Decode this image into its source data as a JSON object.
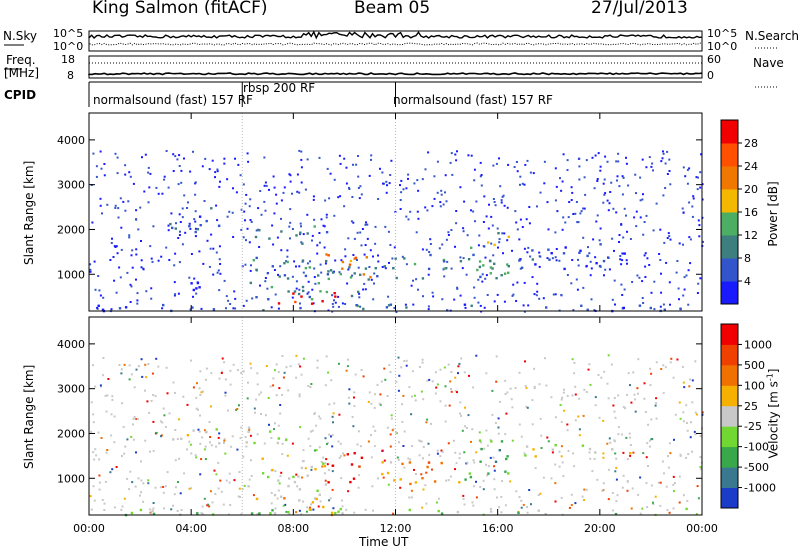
{
  "header": {
    "station": "King Salmon (fitACF)",
    "beam": "Beam 05",
    "date": "27/Jul/2013"
  },
  "side_labels": {
    "nsky": "N.Sky",
    "nsearch": "N.Search",
    "freq": "Freq.",
    "freq_unit": "[MHz]",
    "nave": "Nave",
    "cpid": "CPID"
  },
  "chart_data": [
    {
      "type": "line",
      "name": "noise",
      "ylabels_left": [
        "10^5",
        "10^0"
      ],
      "ylabels_right": [
        "10^5",
        "10^0"
      ],
      "series": [
        {
          "name": "N.Sky"
        },
        {
          "name": "N.Search"
        }
      ]
    },
    {
      "type": "line",
      "name": "freq-nave",
      "ylim_left": [
        8,
        18
      ],
      "ylim_right": [
        0,
        60
      ],
      "ylabels_left": [
        "18",
        "8"
      ],
      "ylabels_right": [
        "60",
        "0"
      ],
      "series": [
        {
          "name": "Freq."
        },
        {
          "name": "Nave"
        }
      ]
    },
    {
      "type": "table",
      "name": "cpid",
      "segments": [
        {
          "label": "normalsound (fast) 157 RF",
          "start_h": 0,
          "end_h": 6
        },
        {
          "label": "rbsp 200 RF",
          "start_h": 6,
          "end_h": 12
        },
        {
          "label": "normalsound (fast) 157 RF",
          "start_h": 12,
          "end_h": 24
        }
      ]
    },
    {
      "type": "heatmap",
      "name": "power",
      "ylabel": "Slant Range [km]",
      "yticks": [
        1000,
        2000,
        3000,
        4000
      ],
      "ylim": [
        180,
        4600
      ],
      "xlim": [
        0,
        24
      ],
      "colorbar": {
        "label": "Power [dB]",
        "ticks": [
          "4",
          "8",
          "12",
          "16",
          "20",
          "24",
          "28"
        ],
        "colors": [
          "#1a1aff",
          "#3355cc",
          "#3d7e7e",
          "#4cae62",
          "#f5b800",
          "#f07800",
          "#ff5000",
          "#f00000"
        ]
      },
      "regions": [
        {
          "h0": 0.2,
          "h1": 23.8,
          "r0": 200,
          "r1": 350,
          "level": 1
        },
        {
          "h0": 6.2,
          "h1": 11.3,
          "r0": 300,
          "r1": 1400,
          "level": 2
        },
        {
          "h0": 7.1,
          "h1": 9.6,
          "r0": 300,
          "r1": 700,
          "level": 7
        },
        {
          "h0": 9.2,
          "h1": 11.0,
          "r0": 800,
          "r1": 1500,
          "level": 5
        },
        {
          "h0": 6.4,
          "h1": 9.3,
          "r0": 1700,
          "r1": 2100,
          "level": 2
        },
        {
          "h0": 11.2,
          "h1": 16.4,
          "r0": 900,
          "r1": 1500,
          "level": 2
        },
        {
          "h0": 14.9,
          "h1": 16.5,
          "r0": 1100,
          "r1": 2000,
          "level": 3
        },
        {
          "h0": 16.8,
          "h1": 21.0,
          "r0": 1100,
          "r1": 1700,
          "level": 1
        },
        {
          "h0": 3.1,
          "h1": 5.2,
          "r0": 1900,
          "r1": 2500,
          "level": 1
        },
        {
          "h0": 2.6,
          "h1": 4.6,
          "r0": 600,
          "r1": 900,
          "level": 0
        }
      ]
    },
    {
      "type": "heatmap",
      "name": "velocity",
      "ylabel": "Slant Range [km]",
      "yticks": [
        1000,
        2000,
        3000,
        4000
      ],
      "ylim": [
        180,
        4600
      ],
      "xlim": [
        0,
        24
      ],
      "colorbar": {
        "label": "Velocity [m s",
        "label_sup": "-1",
        "label_end": "]",
        "ticks": [
          "1000",
          "500",
          "100",
          "25",
          "-25",
          "-100",
          "-500",
          "-1000"
        ],
        "colors": [
          "#1a3cc8",
          "#3a7890",
          "#38a84a",
          "#70d830",
          "#c8c8c8",
          "#f5b000",
          "#f07000",
          "#f04000",
          "#f00000"
        ]
      },
      "regions": [
        {
          "h0": 0.2,
          "h1": 23.8,
          "r0": 200,
          "r1": 350,
          "level": 3
        },
        {
          "h0": 6.2,
          "h1": 9.3,
          "r0": 500,
          "r1": 1500,
          "level": 4
        },
        {
          "h0": 7.3,
          "h1": 9.5,
          "r0": 250,
          "r1": 600,
          "level": 5
        },
        {
          "h0": 9.3,
          "h1": 10.9,
          "r0": 900,
          "r1": 1600,
          "level": 8
        },
        {
          "h0": 11.0,
          "h1": 14.5,
          "r0": 900,
          "r1": 1400,
          "level": 6
        },
        {
          "h0": 14.6,
          "h1": 16.4,
          "r0": 900,
          "r1": 1900,
          "level": 2
        },
        {
          "h0": 3.1,
          "h1": 8.0,
          "r0": 1800,
          "r1": 2200,
          "level": 4
        },
        {
          "h0": 17.0,
          "h1": 21.5,
          "r0": 1500,
          "r1": 1800,
          "level": 4
        }
      ]
    }
  ],
  "x_axis": {
    "ticks": [
      "00:00",
      "04:00",
      "08:00",
      "12:00",
      "16:00",
      "20:00",
      "00:00"
    ],
    "label": "Time UT"
  }
}
